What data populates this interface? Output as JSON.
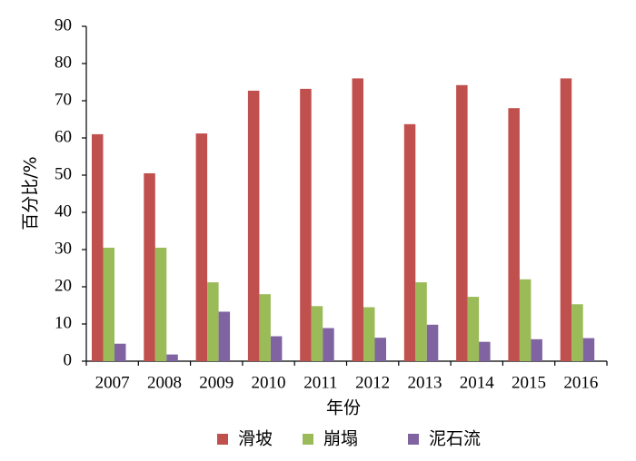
{
  "chart_data": {
    "type": "bar",
    "title": "",
    "xlabel": "年份",
    "ylabel": "百分比/%",
    "ylim": [
      0,
      90
    ],
    "yticks": [
      0,
      10,
      20,
      30,
      40,
      50,
      60,
      70,
      80,
      90
    ],
    "grid": false,
    "legend_position": "bottom",
    "categories": [
      "2007",
      "2008",
      "2009",
      "2010",
      "2011",
      "2012",
      "2013",
      "2014",
      "2015",
      "2016"
    ],
    "series": [
      {
        "name": "滑坡",
        "color": "#c0504d",
        "values": [
          61.0,
          50.5,
          61.2,
          72.7,
          73.2,
          76.0,
          63.7,
          74.2,
          68.0,
          76.0
        ]
      },
      {
        "name": "崩塌",
        "color": "#9bbb59",
        "values": [
          30.5,
          30.5,
          21.2,
          18.0,
          14.8,
          14.5,
          21.2,
          17.3,
          22.0,
          15.3
        ]
      },
      {
        "name": "泥石流",
        "color": "#8064a2",
        "values": [
          4.7,
          1.8,
          13.3,
          6.7,
          8.9,
          6.3,
          9.8,
          5.2,
          5.9,
          6.2
        ]
      }
    ]
  }
}
